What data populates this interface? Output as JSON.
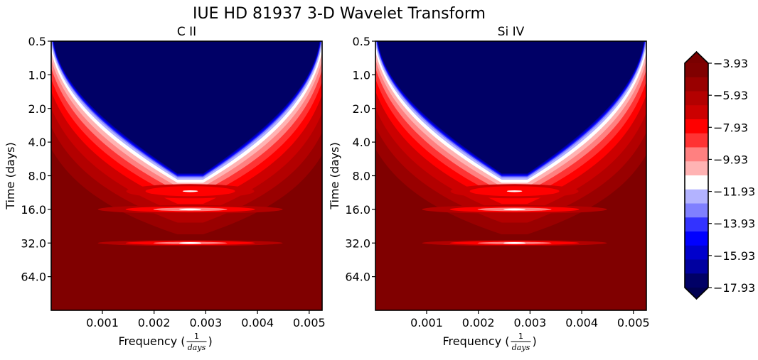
{
  "figure": {
    "title": "IUE HD 81937 3-D Wavelet Transform"
  },
  "chart_data": [
    {
      "type": "heatmap",
      "title": "C II",
      "xlabel": "Frequency (1/days)",
      "xlabel_prefix": "Frequency (",
      "xlabel_frac_num": "1",
      "xlabel_frac_den": "days",
      "xlabel_suffix": ")",
      "ylabel": "Time (days)",
      "xlim": [
        1e-05,
        0.00525
      ],
      "ylim_log2": [
        0.5,
        128
      ],
      "x_ticks": [
        0.001,
        0.002,
        0.003,
        0.004,
        0.005
      ],
      "x_tick_labels": [
        "0.001",
        "0.002",
        "0.003",
        "0.004",
        "0.005"
      ],
      "y_ticks": [
        0.5,
        1.0,
        2.0,
        4.0,
        8.0,
        16.0,
        32.0,
        64.0
      ],
      "y_tick_labels": [
        "0.5",
        "1.0",
        "2.0",
        "4.0",
        "8.0",
        "16.0",
        "32.0",
        "64.0"
      ],
      "features": {
        "cone_center_frequency": 0.0027,
        "cone_vertex_time": 8.0,
        "bright_bands_time": [
          11.0,
          16.0,
          32.0
        ]
      }
    },
    {
      "type": "heatmap",
      "title": "Si IV",
      "xlabel": "Frequency (1/days)",
      "xlabel_prefix": "Frequency (",
      "xlabel_frac_num": "1",
      "xlabel_frac_den": "days",
      "xlabel_suffix": ")",
      "ylabel": "Time (days)",
      "xlim": [
        1e-05,
        0.00525
      ],
      "ylim_log2": [
        0.5,
        128
      ],
      "x_ticks": [
        0.001,
        0.002,
        0.003,
        0.004,
        0.005
      ],
      "x_tick_labels": [
        "0.001",
        "0.002",
        "0.003",
        "0.004",
        "0.005"
      ],
      "y_ticks": [
        0.5,
        1.0,
        2.0,
        4.0,
        8.0,
        16.0,
        32.0,
        64.0
      ],
      "y_tick_labels": [
        "0.5",
        "1.0",
        "2.0",
        "4.0",
        "8.0",
        "16.0",
        "32.0",
        "64.0"
      ],
      "features": {
        "cone_center_frequency": 0.0027,
        "cone_vertex_time": 8.0,
        "bright_bands_time": [
          11.0,
          16.0,
          32.0
        ]
      }
    }
  ],
  "colorbar": {
    "levels": [
      -3.93,
      -4.93,
      -5.93,
      -6.93,
      -7.93,
      -8.93,
      -9.93,
      -10.93,
      -11.93,
      -12.93,
      -13.93,
      -14.93,
      -15.93,
      -16.93,
      -17.93
    ],
    "tick_labels": [
      "−3.93",
      "−5.93",
      "−7.93",
      "−9.93",
      "−11.93",
      "−13.93",
      "−15.93",
      "−17.93"
    ],
    "extend": "both",
    "colors_top_to_bottom": [
      "#800000",
      "#990000",
      "#b30000",
      "#cc0000",
      "#ff0000",
      "#ff3333",
      "#ff8080",
      "#ffb3b3",
      "#ffffff",
      "#b3b3ff",
      "#8080ff",
      "#3333ff",
      "#0000ff",
      "#0000cc",
      "#0000a0",
      "#000066"
    ],
    "over_color": "#7a0000",
    "under_color": "#000050"
  }
}
